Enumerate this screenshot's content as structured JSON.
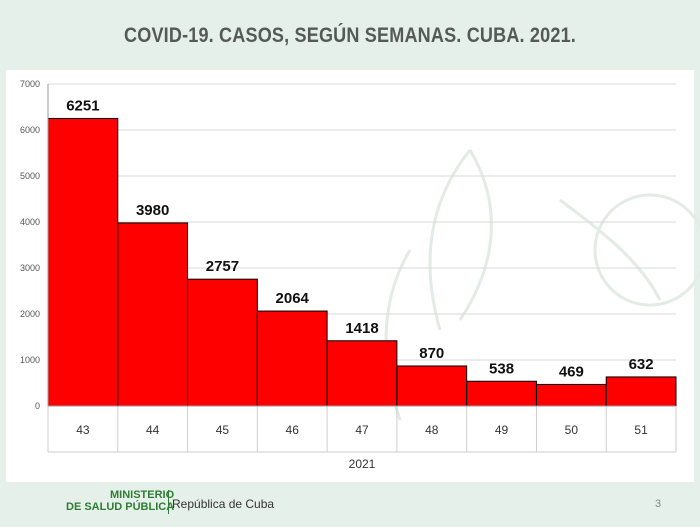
{
  "slide": {
    "title": "COVID-19. CASOS, SEGÚN SEMANAS. CUBA. 2021.",
    "footer": {
      "ministry_line1": "MINISTERIO",
      "ministry_line2": "DE SALUD PÚBLICA",
      "republic": "República de Cuba"
    },
    "page_number": "3"
  },
  "colors": {
    "bar": "#ff0000",
    "bar_outline": "#000000",
    "background": "#e6f0ea",
    "panel": "#ffffff",
    "gridline": "#d9d9d9",
    "title": "#555a57",
    "ministry_green": "#2e7d32"
  },
  "chart_data": {
    "type": "bar",
    "title": "COVID-19. CASOS, SEGÚN SEMANAS. CUBA. 2021.",
    "categories": [
      "43",
      "44",
      "45",
      "46",
      "47",
      "48",
      "49",
      "50",
      "51"
    ],
    "values": [
      6251,
      3980,
      2757,
      2064,
      1418,
      870,
      538,
      469,
      632
    ],
    "data_labels": [
      "6251",
      "3980",
      "2757",
      "2064",
      "1418",
      "870",
      "538",
      "469",
      "632"
    ],
    "group_label": "2021",
    "xlabel": "",
    "ylabel": "",
    "ylim": [
      0,
      7000
    ],
    "yticks": [
      0,
      1000,
      2000,
      3000,
      4000,
      5000,
      6000,
      7000
    ],
    "grid": true,
    "legend": "none"
  }
}
